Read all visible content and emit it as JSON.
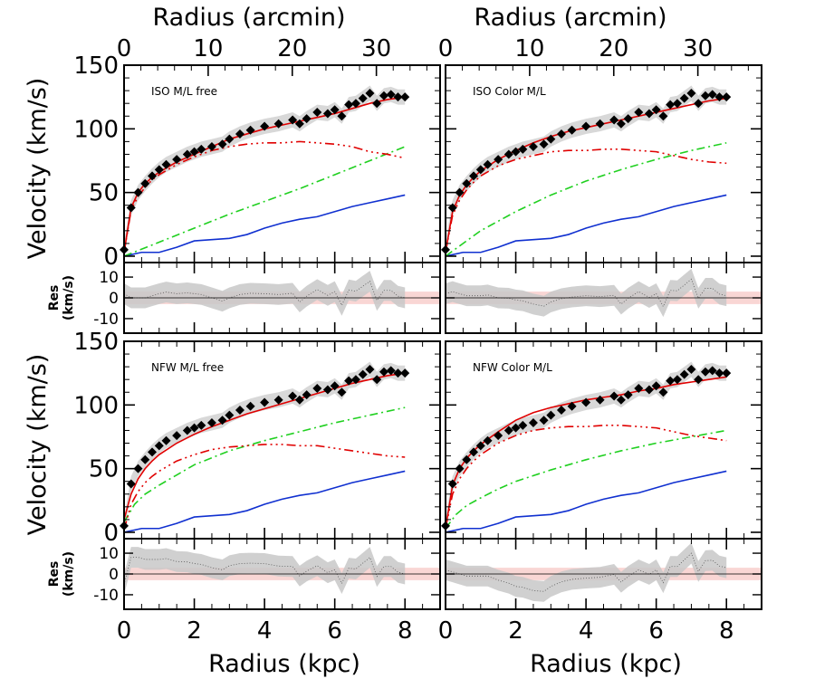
{
  "figure": {
    "top_axis_label": "Radius (arcmin)",
    "bottom_axis_label": "Radius (kpc)",
    "velocity_label": "Velocity (km/s)",
    "res_label_line1": "Res",
    "res_label_line2": "(km/s)",
    "colors": {
      "data": "#000000",
      "total_fit": "#e00000",
      "halo": "#e00000",
      "disk": "#20d020",
      "gas": "#1030d0",
      "error_band": "#c8c8c8",
      "res_band": "#f9d6d4"
    }
  },
  "chart_data": [
    {
      "type": "line",
      "panel": "top-left",
      "annotation": "ISO M/L free",
      "xlabel": "Radius (kpc)",
      "x2label": "Radius (arcmin)",
      "ylabel": "Velocity (km/s)",
      "xlim": [
        0,
        9
      ],
      "ylim": [
        -5,
        150
      ],
      "xticks": [
        "0",
        "2",
        "4",
        "6",
        "8"
      ],
      "x2ticks": [
        "0",
        "10",
        "20",
        "30"
      ],
      "yticks": [
        "0",
        "50",
        "100",
        "150"
      ],
      "residual": {
        "ylabel": "Res (km/s)",
        "ylim": [
          -17,
          17
        ],
        "yticks": [
          "10",
          "0",
          "-10"
        ],
        "band": [
          -3,
          3
        ]
      },
      "series": [
        {
          "role": "observed",
          "x": [
            0,
            0.2,
            0.4,
            0.6,
            0.8,
            1,
            1.2,
            1.5,
            1.8,
            2,
            2.2,
            2.5,
            2.8,
            3,
            3.3,
            3.6,
            4,
            4.4,
            4.8,
            5,
            5.2,
            5.5,
            5.8,
            6,
            6.2,
            6.4,
            6.6,
            6.8,
            7,
            7.2,
            7.4,
            7.6,
            7.8,
            8
          ],
          "y": [
            5,
            38,
            50,
            57,
            63,
            68,
            72,
            76,
            80,
            82,
            84,
            86,
            88,
            92,
            96,
            99,
            102,
            104,
            107,
            104,
            108,
            113,
            112,
            115,
            110,
            119,
            120,
            124,
            128,
            120,
            126,
            127,
            125,
            125
          ]
        },
        {
          "role": "total fit",
          "x": [
            0,
            0.2,
            0.4,
            0.6,
            0.8,
            1,
            1.5,
            2,
            2.5,
            3,
            3.5,
            4,
            4.5,
            5,
            5.5,
            6,
            6.5,
            7,
            7.5,
            8
          ],
          "y": [
            3,
            38,
            50,
            57,
            62,
            66,
            74,
            80,
            86,
            92,
            96,
            100,
            103,
            106,
            109,
            112,
            116,
            120,
            123,
            125
          ]
        },
        {
          "role": "halo",
          "x": [
            0,
            0.2,
            0.4,
            0.6,
            0.8,
            1,
            1.5,
            2,
            2.5,
            3,
            3.5,
            4,
            4.5,
            5,
            5.5,
            6,
            6.5,
            7,
            7.5,
            8
          ],
          "y": [
            3,
            36,
            47,
            54,
            60,
            64,
            72,
            78,
            83,
            86,
            88,
            89,
            89,
            90,
            89,
            88,
            86,
            82,
            80,
            77
          ]
        },
        {
          "role": "stellar disk",
          "x": [
            0,
            1,
            2,
            3,
            4,
            5,
            6,
            7,
            8
          ],
          "y": [
            0,
            11,
            22,
            33,
            43,
            53,
            64,
            75,
            86
          ]
        },
        {
          "role": "gas",
          "x": [
            0,
            0.5,
            1,
            1.5,
            2,
            2.5,
            3,
            3.5,
            4,
            4.5,
            5,
            5.5,
            6,
            6.5,
            7,
            7.5,
            8
          ],
          "y": [
            0,
            3,
            3,
            7,
            12,
            13,
            14,
            17,
            22,
            26,
            29,
            31,
            35,
            39,
            42,
            45,
            48
          ]
        }
      ]
    },
    {
      "type": "line",
      "panel": "top-right",
      "annotation": "ISO Color M/L",
      "xlabel": "Radius (kpc)",
      "x2label": "Radius (arcmin)",
      "ylabel": "",
      "xlim": [
        0,
        9
      ],
      "ylim": [
        -5,
        150
      ],
      "xticks": [
        "0",
        "2",
        "4",
        "6",
        "8"
      ],
      "x2ticks": [
        "0",
        "10",
        "20",
        "30"
      ],
      "residual": {
        "ylim": [
          -17,
          17
        ],
        "band": [
          -3,
          3
        ]
      },
      "series": [
        {
          "role": "observed",
          "x": [
            0,
            0.2,
            0.4,
            0.6,
            0.8,
            1,
            1.2,
            1.5,
            1.8,
            2,
            2.2,
            2.5,
            2.8,
            3,
            3.3,
            3.6,
            4,
            4.4,
            4.8,
            5,
            5.2,
            5.5,
            5.8,
            6,
            6.2,
            6.4,
            6.6,
            6.8,
            7,
            7.2,
            7.4,
            7.6,
            7.8,
            8
          ],
          "y": [
            5,
            38,
            50,
            57,
            63,
            68,
            72,
            76,
            80,
            82,
            84,
            86,
            88,
            92,
            96,
            99,
            102,
            104,
            107,
            104,
            108,
            113,
            112,
            115,
            110,
            119,
            120,
            124,
            128,
            120,
            126,
            127,
            125,
            125
          ]
        },
        {
          "role": "total fit",
          "x": [
            0,
            0.2,
            0.4,
            0.6,
            0.8,
            1,
            1.5,
            2,
            2.5,
            3,
            3.5,
            4,
            4.5,
            5,
            5.5,
            6,
            6.5,
            7,
            7.5,
            8
          ],
          "y": [
            3,
            35,
            48,
            56,
            62,
            67,
            76,
            83,
            89,
            94,
            98,
            101,
            104,
            107,
            110,
            113,
            116,
            119,
            122,
            124
          ]
        },
        {
          "role": "halo",
          "x": [
            0,
            0.2,
            0.4,
            0.6,
            0.8,
            1,
            1.5,
            2,
            2.5,
            3,
            3.5,
            4,
            4.5,
            5,
            5.5,
            6,
            6.5,
            7,
            7.5,
            8
          ],
          "y": [
            3,
            32,
            44,
            52,
            58,
            63,
            71,
            76,
            79,
            82,
            83,
            83,
            84,
            84,
            83,
            82,
            79,
            76,
            74,
            73
          ]
        },
        {
          "role": "stellar disk",
          "x": [
            0,
            1,
            2,
            3,
            4,
            5,
            6,
            7,
            8
          ],
          "y": [
            0,
            20,
            35,
            48,
            59,
            68,
            76,
            83,
            89
          ]
        },
        {
          "role": "gas",
          "x": [
            0,
            0.5,
            1,
            1.5,
            2,
            2.5,
            3,
            3.5,
            4,
            4.5,
            5,
            5.5,
            6,
            6.5,
            7,
            7.5,
            8
          ],
          "y": [
            0,
            3,
            3,
            7,
            12,
            13,
            14,
            17,
            22,
            26,
            29,
            31,
            35,
            39,
            42,
            45,
            48
          ]
        }
      ]
    },
    {
      "type": "line",
      "panel": "bottom-left",
      "annotation": "NFW M/L free",
      "xlabel": "Radius (kpc)",
      "ylabel": "Velocity (km/s)",
      "xlim": [
        0,
        9
      ],
      "ylim": [
        -5,
        150
      ],
      "xticks": [
        "0",
        "2",
        "4",
        "6",
        "8"
      ],
      "yticks": [
        "0",
        "50",
        "100",
        "150"
      ],
      "residual": {
        "ylabel": "Res (km/s)",
        "ylim": [
          -17,
          17
        ],
        "yticks": [
          "10",
          "0",
          "-10"
        ],
        "band": [
          -3,
          3
        ]
      },
      "series": [
        {
          "role": "observed",
          "x": [
            0,
            0.2,
            0.4,
            0.6,
            0.8,
            1,
            1.2,
            1.5,
            1.8,
            2,
            2.2,
            2.5,
            2.8,
            3,
            3.3,
            3.6,
            4,
            4.4,
            4.8,
            5,
            5.2,
            5.5,
            5.8,
            6,
            6.2,
            6.4,
            6.6,
            6.8,
            7,
            7.2,
            7.4,
            7.6,
            7.8,
            8
          ],
          "y": [
            5,
            38,
            50,
            57,
            63,
            68,
            72,
            76,
            80,
            82,
            84,
            86,
            88,
            92,
            96,
            99,
            102,
            104,
            107,
            104,
            108,
            113,
            112,
            115,
            110,
            119,
            120,
            124,
            128,
            120,
            126,
            127,
            125,
            125
          ]
        },
        {
          "role": "total fit",
          "x": [
            0,
            0.2,
            0.4,
            0.6,
            0.8,
            1,
            1.5,
            2,
            2.5,
            3,
            3.5,
            4,
            4.5,
            5,
            5.5,
            6,
            6.5,
            7,
            7.5,
            8
          ],
          "y": [
            10,
            30,
            42,
            50,
            56,
            61,
            70,
            77,
            83,
            88,
            93,
            97,
            101,
            105,
            109,
            113,
            117,
            120,
            123,
            125
          ]
        },
        {
          "role": "halo",
          "x": [
            0,
            0.2,
            0.4,
            0.6,
            0.8,
            1,
            1.5,
            2,
            2.5,
            3,
            3.5,
            4,
            4.5,
            5,
            5.5,
            6,
            6.5,
            7,
            7.5,
            8
          ],
          "y": [
            2,
            22,
            32,
            39,
            44,
            48,
            56,
            61,
            65,
            67,
            68,
            69,
            69,
            68,
            68,
            66,
            64,
            62,
            60,
            59
          ]
        },
        {
          "role": "stellar disk",
          "x": [
            0,
            0.3,
            0.6,
            1,
            1.5,
            2,
            3,
            4,
            5,
            6,
            7,
            8
          ],
          "y": [
            8,
            22,
            30,
            37,
            45,
            53,
            64,
            72,
            79,
            86,
            92,
            98
          ]
        },
        {
          "role": "gas",
          "x": [
            0,
            0.5,
            1,
            1.5,
            2,
            2.5,
            3,
            3.5,
            4,
            4.5,
            5,
            5.5,
            6,
            6.5,
            7,
            7.5,
            8
          ],
          "y": [
            0,
            3,
            3,
            7,
            12,
            13,
            14,
            17,
            22,
            26,
            29,
            31,
            35,
            39,
            42,
            45,
            48
          ]
        }
      ]
    },
    {
      "type": "line",
      "panel": "bottom-right",
      "annotation": "NFW Color M/L",
      "xlabel": "Radius (kpc)",
      "ylabel": "",
      "xlim": [
        0,
        9
      ],
      "ylim": [
        -5,
        150
      ],
      "xticks": [
        "0",
        "2",
        "4",
        "6",
        "8"
      ],
      "residual": {
        "ylim": [
          -17,
          17
        ],
        "band": [
          -3,
          3
        ]
      },
      "series": [
        {
          "role": "observed",
          "x": [
            0,
            0.2,
            0.4,
            0.6,
            0.8,
            1,
            1.2,
            1.5,
            1.8,
            2,
            2.2,
            2.5,
            2.8,
            3,
            3.3,
            3.6,
            4,
            4.4,
            4.8,
            5,
            5.2,
            5.5,
            5.8,
            6,
            6.2,
            6.4,
            6.6,
            6.8,
            7,
            7.2,
            7.4,
            7.6,
            7.8,
            8
          ],
          "y": [
            5,
            38,
            50,
            57,
            63,
            68,
            72,
            76,
            80,
            82,
            84,
            86,
            88,
            92,
            96,
            99,
            102,
            104,
            107,
            104,
            108,
            113,
            112,
            115,
            110,
            119,
            120,
            124,
            128,
            120,
            126,
            127,
            125,
            125
          ]
        },
        {
          "role": "total fit",
          "x": [
            0,
            0.2,
            0.4,
            0.6,
            0.8,
            1,
            1.5,
            2,
            2.5,
            3,
            3.5,
            4,
            4.5,
            5,
            5.5,
            6,
            6.5,
            7,
            7.5,
            8
          ],
          "y": [
            3,
            37,
            50,
            58,
            64,
            69,
            79,
            88,
            94,
            98,
            101,
            104,
            106,
            108,
            111,
            113,
            116,
            118,
            120,
            122
          ]
        },
        {
          "role": "halo",
          "x": [
            0,
            0.2,
            0.4,
            0.6,
            0.8,
            1,
            1.5,
            2,
            2.5,
            3,
            3.5,
            4,
            4.5,
            5,
            5.5,
            6,
            6.5,
            7,
            7.5,
            8
          ],
          "y": [
            3,
            30,
            42,
            50,
            56,
            61,
            70,
            76,
            80,
            82,
            83,
            83,
            84,
            84,
            83,
            82,
            79,
            76,
            74,
            72
          ]
        },
        {
          "role": "stellar disk",
          "x": [
            0,
            0.3,
            0.6,
            1,
            1.5,
            2,
            3,
            4,
            5,
            6,
            7,
            8
          ],
          "y": [
            3,
            14,
            21,
            27,
            34,
            40,
            49,
            57,
            64,
            70,
            75,
            80
          ]
        },
        {
          "role": "gas",
          "x": [
            0,
            0.5,
            1,
            1.5,
            2,
            2.5,
            3,
            3.5,
            4,
            4.5,
            5,
            5.5,
            6,
            6.5,
            7,
            7.5,
            8
          ],
          "y": [
            0,
            3,
            3,
            7,
            12,
            13,
            14,
            17,
            22,
            26,
            29,
            31,
            35,
            39,
            42,
            45,
            48
          ]
        }
      ]
    }
  ]
}
